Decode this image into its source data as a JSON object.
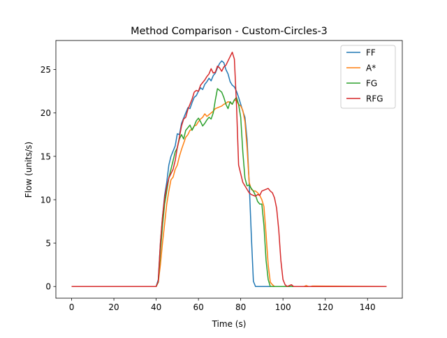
{
  "chart_data": {
    "type": "line",
    "title": "Method Comparison - Custom-Circles-3",
    "xlabel": "Time (s)",
    "ylabel": "Flow (units/s)",
    "xlim": [
      -7.45,
      156.45
    ],
    "ylim": [
      -1.35,
      28.35
    ],
    "xticks": [
      0,
      20,
      40,
      60,
      80,
      100,
      120,
      140
    ],
    "yticks": [
      0,
      5,
      10,
      15,
      20,
      25
    ],
    "grid": false,
    "legend": "top-right",
    "series": [
      {
        "name": "FF",
        "color": "#1f77b4",
        "points": [
          [
            0,
            0
          ],
          [
            40,
            0
          ],
          [
            41,
            0.8
          ],
          [
            42,
            5
          ],
          [
            43,
            8
          ],
          [
            44,
            10.5
          ],
          [
            45,
            12
          ],
          [
            46,
            14
          ],
          [
            47,
            15
          ],
          [
            48,
            15.6
          ],
          [
            49,
            16.2
          ],
          [
            50,
            17.6
          ],
          [
            51,
            17.5
          ],
          [
            52,
            18.8
          ],
          [
            53,
            19.4
          ],
          [
            54,
            20
          ],
          [
            55,
            20.6
          ],
          [
            56,
            20.5
          ],
          [
            57,
            21.2
          ],
          [
            58,
            21.8
          ],
          [
            59,
            22
          ],
          [
            60,
            22.5
          ],
          [
            61,
            22.9
          ],
          [
            62,
            22.7
          ],
          [
            63,
            23.3
          ],
          [
            64,
            23.6
          ],
          [
            65,
            24
          ],
          [
            66,
            23.7
          ],
          [
            67,
            24.3
          ],
          [
            68,
            24.6
          ],
          [
            69,
            25.2
          ],
          [
            70,
            25.7
          ],
          [
            71,
            26
          ],
          [
            72,
            25.8
          ],
          [
            73,
            25
          ],
          [
            74,
            24.5
          ],
          [
            75,
            23.6
          ],
          [
            76,
            23.2
          ],
          [
            77,
            23
          ],
          [
            78,
            22.5
          ],
          [
            79,
            21.8
          ],
          [
            80,
            21
          ],
          [
            81,
            20.2
          ],
          [
            82,
            19.5
          ],
          [
            83,
            17
          ],
          [
            84,
            12
          ],
          [
            85,
            6
          ],
          [
            86,
            0.6
          ],
          [
            87,
            0
          ],
          [
            88,
            0
          ],
          [
            149,
            0
          ]
        ]
      },
      {
        "name": "A*",
        "color": "#ff7f0e",
        "points": [
          [
            0,
            0
          ],
          [
            40,
            0
          ],
          [
            41,
            0.5
          ],
          [
            42,
            2.5
          ],
          [
            43,
            5
          ],
          [
            44,
            7.2
          ],
          [
            45,
            9.5
          ],
          [
            46,
            11
          ],
          [
            47,
            12.3
          ],
          [
            48,
            12.6
          ],
          [
            49,
            13.5
          ],
          [
            50,
            14
          ],
          [
            51,
            15
          ],
          [
            52,
            15.8
          ],
          [
            53,
            16.5
          ],
          [
            54,
            17.2
          ],
          [
            55,
            17.5
          ],
          [
            56,
            18
          ],
          [
            57,
            18.1
          ],
          [
            58,
            18.5
          ],
          [
            59,
            18.6
          ],
          [
            60,
            19
          ],
          [
            61,
            19.3
          ],
          [
            62,
            19.5
          ],
          [
            63,
            19.9
          ],
          [
            64,
            19.6
          ],
          [
            65,
            19.8
          ],
          [
            66,
            20
          ],
          [
            67,
            20.2
          ],
          [
            68,
            20.5
          ],
          [
            69,
            20.6
          ],
          [
            70,
            20.7
          ],
          [
            71,
            20.8
          ],
          [
            72,
            21
          ],
          [
            73,
            21.1
          ],
          [
            74,
            21.3
          ],
          [
            75,
            21.2
          ],
          [
            76,
            21
          ],
          [
            77,
            21.5
          ],
          [
            78,
            21.4
          ],
          [
            79,
            21
          ],
          [
            80,
            20.8
          ],
          [
            81,
            20.3
          ],
          [
            82,
            19
          ],
          [
            83,
            16
          ],
          [
            84,
            12
          ],
          [
            85,
            11.2
          ],
          [
            86,
            11
          ],
          [
            87,
            11
          ],
          [
            88,
            10.8
          ],
          [
            89,
            10.5
          ],
          [
            90,
            10
          ],
          [
            91,
            9.2
          ],
          [
            92,
            6
          ],
          [
            93,
            2.5
          ],
          [
            94,
            0.5
          ],
          [
            95,
            0.2
          ],
          [
            96,
            0
          ],
          [
            110,
            0
          ],
          [
            111,
            0.1
          ],
          [
            112,
            0
          ],
          [
            113,
            0
          ],
          [
            114,
            0.05
          ],
          [
            149,
            0
          ]
        ]
      },
      {
        "name": "FG",
        "color": "#2ca02c",
        "points": [
          [
            0,
            0
          ],
          [
            40,
            0
          ],
          [
            41,
            0.5
          ],
          [
            42,
            4
          ],
          [
            43,
            7
          ],
          [
            44,
            9.5
          ],
          [
            45,
            11
          ],
          [
            46,
            12.5
          ],
          [
            47,
            13.5
          ],
          [
            48,
            14.5
          ],
          [
            49,
            15.5
          ],
          [
            50,
            16
          ],
          [
            51,
            17
          ],
          [
            52,
            17.5
          ],
          [
            53,
            17
          ],
          [
            54,
            18
          ],
          [
            55,
            18.3
          ],
          [
            56,
            18.6
          ],
          [
            57,
            18
          ],
          [
            58,
            18.5
          ],
          [
            59,
            19.1
          ],
          [
            60,
            19.4
          ],
          [
            61,
            19
          ],
          [
            62,
            18.5
          ],
          [
            63,
            18.8
          ],
          [
            64,
            19.2
          ],
          [
            65,
            19.5
          ],
          [
            66,
            19.3
          ],
          [
            67,
            20
          ],
          [
            68,
            21.5
          ],
          [
            69,
            22.8
          ],
          [
            70,
            22.6
          ],
          [
            71,
            22.4
          ],
          [
            72,
            21.8
          ],
          [
            73,
            21
          ],
          [
            74,
            20.5
          ],
          [
            75,
            21.3
          ],
          [
            76,
            21
          ],
          [
            77,
            21.5
          ],
          [
            78,
            21.8
          ],
          [
            79,
            21
          ],
          [
            80,
            19.5
          ],
          [
            81,
            15.5
          ],
          [
            82,
            12.5
          ],
          [
            83,
            11.6
          ],
          [
            84,
            11.7
          ],
          [
            85,
            11.3
          ],
          [
            86,
            11
          ],
          [
            87,
            10.5
          ],
          [
            88,
            9.8
          ],
          [
            89,
            9.5
          ],
          [
            90,
            9.5
          ],
          [
            91,
            7
          ],
          [
            92,
            3
          ],
          [
            93,
            0.8
          ],
          [
            94,
            0
          ],
          [
            149,
            0
          ]
        ]
      },
      {
        "name": "RFG",
        "color": "#d62728",
        "points": [
          [
            0,
            0
          ],
          [
            40,
            0
          ],
          [
            41,
            0.6
          ],
          [
            42,
            5
          ],
          [
            43,
            8
          ],
          [
            44,
            10.2
          ],
          [
            45,
            11.5
          ],
          [
            46,
            12.5
          ],
          [
            47,
            13
          ],
          [
            48,
            13.5
          ],
          [
            49,
            14.5
          ],
          [
            50,
            16
          ],
          [
            51,
            17.2
          ],
          [
            52,
            18.5
          ],
          [
            53,
            19.3
          ],
          [
            54,
            19.5
          ],
          [
            55,
            20.4
          ],
          [
            56,
            21
          ],
          [
            57,
            21.6
          ],
          [
            58,
            22.4
          ],
          [
            59,
            22.6
          ],
          [
            60,
            22.5
          ],
          [
            61,
            23.2
          ],
          [
            62,
            23.5
          ],
          [
            63,
            23.8
          ],
          [
            64,
            24.2
          ],
          [
            65,
            24.5
          ],
          [
            66,
            25.1
          ],
          [
            67,
            24.6
          ],
          [
            68,
            24.7
          ],
          [
            69,
            25.4
          ],
          [
            70,
            25.2
          ],
          [
            71,
            24.8
          ],
          [
            72,
            25.3
          ],
          [
            73,
            25.5
          ],
          [
            74,
            26
          ],
          [
            75,
            26.5
          ],
          [
            76,
            27
          ],
          [
            77,
            26.2
          ],
          [
            78,
            21
          ],
          [
            79,
            14
          ],
          [
            80,
            13
          ],
          [
            81,
            12
          ],
          [
            82,
            11.6
          ],
          [
            83,
            11.2
          ],
          [
            84,
            10.8
          ],
          [
            85,
            10.6
          ],
          [
            86,
            10.5
          ],
          [
            87,
            10.4
          ],
          [
            88,
            10.6
          ],
          [
            89,
            10.5
          ],
          [
            90,
            11
          ],
          [
            91,
            11.1
          ],
          [
            92,
            11.2
          ],
          [
            93,
            11.3
          ],
          [
            94,
            11
          ],
          [
            95,
            10.8
          ],
          [
            96,
            10.2
          ],
          [
            97,
            9
          ],
          [
            98,
            6.5
          ],
          [
            99,
            3
          ],
          [
            100,
            0.8
          ],
          [
            101,
            0.2
          ],
          [
            102,
            0
          ],
          [
            103,
            0.1
          ],
          [
            104,
            0.2
          ],
          [
            105,
            0
          ],
          [
            106,
            0
          ],
          [
            149,
            0
          ]
        ]
      }
    ]
  }
}
